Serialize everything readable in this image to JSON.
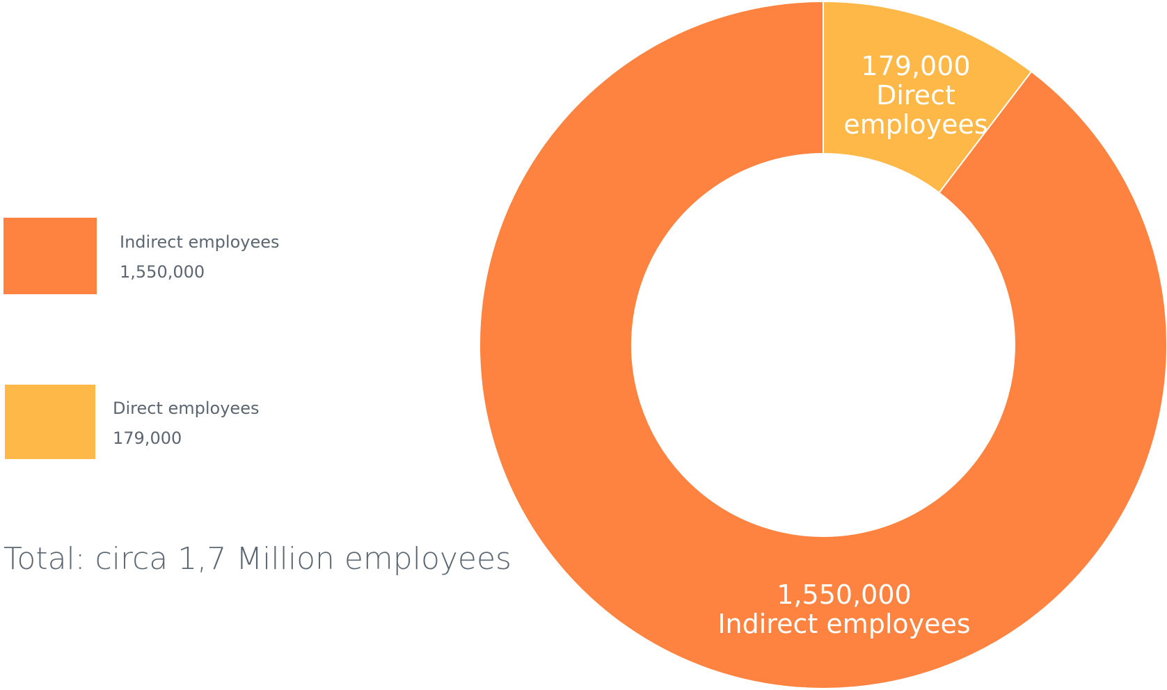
{
  "legend": {
    "items": [
      {
        "label": "Indirect employees",
        "value": "1,550,000",
        "color": "#fe8341"
      },
      {
        "label": "Direct employees",
        "value": "179,000",
        "color": "#fdb848"
      }
    ]
  },
  "total_text": "Total: circa 1,7 Million employees",
  "chart_data": {
    "type": "pie",
    "variant": "donut",
    "slices": [
      {
        "name": "Direct employees",
        "value": 179000,
        "label_value": "179,000",
        "label_lines": [
          "Direct",
          "employees"
        ],
        "color": "#fdb848"
      },
      {
        "name": "Indirect employees",
        "value": 1550000,
        "label_value": "1,550,000",
        "label_lines": [
          "Indirect employees"
        ],
        "color": "#fe8341"
      }
    ],
    "start_angle": "12 o'clock",
    "direction": "clockwise",
    "legend_position": "left"
  }
}
